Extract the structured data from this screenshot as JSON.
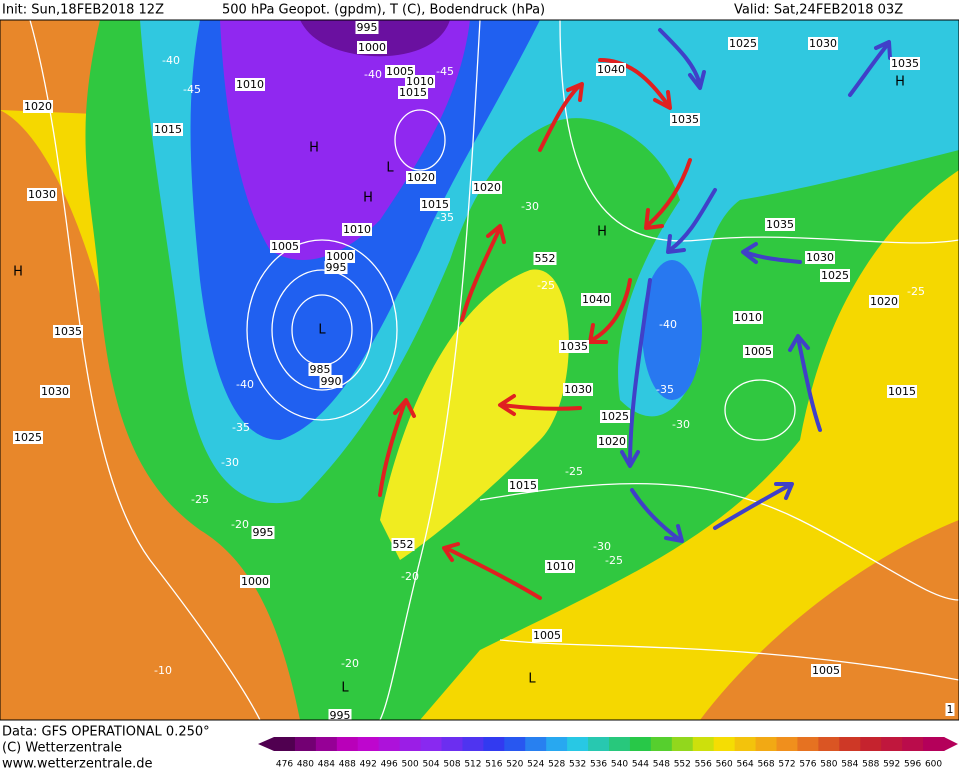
{
  "header": {
    "init": "Init: Sun,18FEB2018 12Z",
    "title": "500 hPa Geopot. (gpdm), T (C), Bodendruck (hPa)",
    "valid": "Valid: Sat,24FEB2018 03Z"
  },
  "map": {
    "isobars": [
      "995",
      "1000",
      "1005",
      "1010",
      "1015",
      "1010",
      "1015",
      "1020",
      "1030",
      "1035",
      "1030",
      "1025",
      "1005",
      "1000",
      "995",
      "990",
      "985",
      "995",
      "1000",
      "995",
      "1020",
      "1015",
      "1010",
      "1020",
      "1040",
      "1035",
      "1025",
      "1030",
      "1035",
      "1035",
      "1030",
      "1025",
      "1020",
      "1010",
      "1005",
      "1015",
      "1040",
      "1035",
      "1030",
      "1025",
      "1020",
      "1015",
      "1010",
      "1005",
      "1005"
    ],
    "temperatures": [
      "-40",
      "-45",
      "-40",
      "-45",
      "-35",
      "-30",
      "-25",
      "-40",
      "-35",
      "-30",
      "-25",
      "-30",
      "-25",
      "-40",
      "-35",
      "-30",
      "-25",
      "-20",
      "-20",
      "-20",
      "-10",
      "-25"
    ],
    "centers": [
      "H",
      "L",
      "H",
      "L",
      "H",
      "H",
      "H",
      "L",
      "L"
    ],
    "thickness_labels": [
      "552",
      "552"
    ],
    "frame_number": "1"
  },
  "colorbar": {
    "values": [
      476,
      480,
      484,
      488,
      492,
      496,
      500,
      504,
      508,
      512,
      516,
      520,
      524,
      528,
      532,
      536,
      540,
      544,
      548,
      552,
      556,
      560,
      564,
      568,
      572,
      576,
      580,
      584,
      588,
      592,
      596,
      600
    ]
  },
  "footer": {
    "data_source": "Data: GFS OPERATIONAL 0.250°",
    "copyright": "(C) Wetterzentrale",
    "website": "www.wetterzentrale.de"
  }
}
